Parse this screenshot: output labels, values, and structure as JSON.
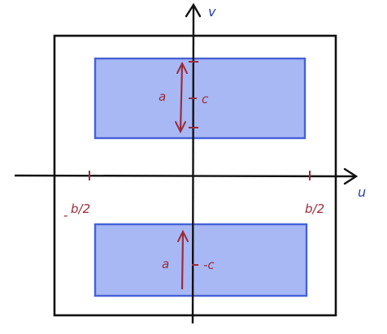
{
  "colors": {
    "ink": "#111111",
    "annotation": "#9b2c3b",
    "axis_label": "#2a3fa8",
    "rect_fill": "#a8b8f5",
    "rect_stroke": "#4661d8"
  },
  "axes": {
    "horizontal_label": "u",
    "vertical_label": "v"
  },
  "ticks": {
    "left_label_sign": "-",
    "left_label": "b/2",
    "right_label": "b/2"
  },
  "top_rect": {
    "height_label": "a",
    "center_label": "c"
  },
  "bottom_rect": {
    "height_label": "a",
    "center_label": "-c"
  }
}
